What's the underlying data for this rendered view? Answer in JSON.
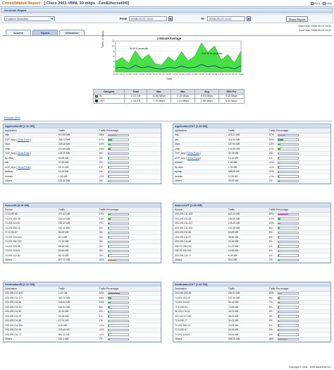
{
  "header": {
    "title_prefix": "Consolidated Report -",
    "title_main": "[ Cisco 2651-VBNL 20 mbps - FastEthernet0/0]",
    "print_label": "Print",
    "help_label": "Help"
  },
  "generate": {
    "section_label": "Generate Report",
    "period_value": "Custom Selection",
    "from_label": "From",
    "from_value": "2008-09-23 13:22",
    "to_label": "To",
    "to_value": "2008-09-23 14:22",
    "show_report_label": "Show Report"
  },
  "times": {
    "start": "Start Time: 2008-09-23 13:22",
    "end": "End Time: 2008-09-23 14:22"
  },
  "tabs": [
    "Volume",
    "Speed",
    "Utilization"
  ],
  "chart_data": {
    "type": "line",
    "title": "1 Minute Average",
    "ylabel": "Traffic (in kbps)",
    "xlabel": "Time",
    "x": [
      "13:25",
      "13:27",
      "13:30",
      "13:33",
      "13:36",
      "13:39",
      "13:42",
      "13:45",
      "13:48",
      "13:51",
      "13:54",
      "13:57",
      "14:00",
      "14:03",
      "14:06",
      "14:09",
      "14:12",
      "14:15",
      "14:18",
      "14:21"
    ],
    "ylim": [
      0,
      12
    ],
    "yticks": [
      0,
      2,
      4,
      6,
      8,
      10,
      12
    ],
    "series": [
      {
        "name": "IN",
        "color": "#33dd33",
        "values": [
          4.1,
          5.6,
          3.4,
          8.3,
          4.8,
          6.9,
          3.2,
          2.7,
          5.9,
          4.0,
          7.9,
          4.4,
          6.1,
          11.2,
          7.6,
          10.1,
          4.6,
          6.8,
          3.5,
          8.1
        ]
      },
      {
        "name": "OUT",
        "color": "#1f2a90",
        "values": [
          1.5,
          1.9,
          1.2,
          2.6,
          1.6,
          2.1,
          1.4,
          1.1,
          1.9,
          1.5,
          2.3,
          1.6,
          1.8,
          2.9,
          2.0,
          2.5,
          1.5,
          1.9,
          1.2,
          2.4
        ]
      }
    ],
    "annotations": [
      "IN 65 % percentile",
      "OUT 65 % percentile"
    ]
  },
  "stats": {
    "headers": [
      "Category",
      "Total",
      "Max",
      "Min",
      "Avg",
      "95th Per"
    ],
    "rows": [
      {
        "name": "IN",
        "color": "#33dd33",
        "total": "2.16 GB",
        "max": "11.66 Mbps",
        "min": "2.12 Mbps",
        "avg": "5.03 Mbps",
        "p95": "9.36 Mbps"
      },
      {
        "name": "OUT",
        "color": "#1f2a90",
        "total": "1.28 GB",
        "max": "7.70 Mbps",
        "min": "1.41 Mbps",
        "avg": "2.98 Mbps",
        "p95": "5.35 Mbps"
      }
    ]
  },
  "resolve_label": "Resolve DNS",
  "show_ports_label": "Show Ports",
  "panels": [
    {
      "title": "ApplicationIN [2.16 GB]",
      "headers": [
        "Application",
        "Traffic",
        "Traffic Percentage"
      ],
      "rows": [
        {
          "name": "http",
          "traffic": "970.59 MB",
          "pct": "45%",
          "val": 45,
          "color": "#f0a050"
        },
        {
          "name": "ESP_App",
          "ports": true,
          "traffic": "358.73 MB",
          "pct": "17%",
          "val": 17,
          "color": "#22cc22"
        },
        {
          "name": "https",
          "traffic": "226.18 MB",
          "pct": "10%",
          "val": 10,
          "color": "#22cc22"
        },
        {
          "name": "smtp",
          "traffic": "214.66 MB",
          "pct": "10%",
          "val": 10,
          "color": "#22cc22"
        },
        {
          "name": "TCP_App",
          "ports": true,
          "traffic": "135.11 MB",
          "pct": "6%",
          "val": 6,
          "color": "#22cc22"
        },
        {
          "name": "ftp-data",
          "traffic": "60.88 MB",
          "pct": "3%",
          "val": 3,
          "color": "#22cc22"
        },
        {
          "name": "ssh",
          "traffic": "37.92 MB",
          "pct": "2%",
          "val": 2,
          "color": "#22cc22"
        },
        {
          "name": "UDP_App",
          "ports": true,
          "traffic": "25.72 MB",
          "pct": "1%",
          "val": 1,
          "color": "#22cc22"
        },
        {
          "name": "Netflow",
          "traffic": "11.23 MB",
          "pct": "1%",
          "val": 1,
          "color": "#22cc22"
        },
        {
          "name": "domain",
          "traffic": "1.43 MB",
          "pct": "<1%",
          "val": 0.5,
          "color": "#22cc22"
        },
        {
          "name": "Others",
          "traffic": "115.34 MB",
          "pct": "5%",
          "val": 5,
          "color": "#22cc22"
        }
      ]
    },
    {
      "title": "ApplicationOUT [1.28 GB]",
      "headers": [
        "Application",
        "Traffic",
        "Traffic Percentage"
      ],
      "rows": [
        {
          "name": "http",
          "traffic": "476.21 MB",
          "pct": "37%",
          "val": 37,
          "color": "#f0a050"
        },
        {
          "name": "ssh",
          "traffic": "314.04 MB",
          "pct": "24%",
          "val": 24,
          "color": "#22cc22"
        },
        {
          "name": "https",
          "traffic": "167.94 MB",
          "pct": "13%",
          "val": 13,
          "color": "#22cc22"
        },
        {
          "name": "smtp",
          "traffic": "141.59 MB",
          "pct": "11%",
          "val": 11,
          "color": "#22cc22"
        },
        {
          "name": "TCP_App",
          "ports": true,
          "traffic": "30.78 MB",
          "pct": "2%",
          "val": 2,
          "color": "#22cc22"
        },
        {
          "name": "UDP_App",
          "ports": true,
          "traffic": "13.16 MB",
          "pct": "1%",
          "val": 1,
          "color": "#22cc22"
        },
        {
          "name": "domain",
          "traffic": "1.45 MB",
          "pct": "<1%",
          "val": 0.5,
          "color": "#22cc22"
        },
        {
          "name": "ftp-data",
          "traffic": "1.09 MB",
          "pct": "<1%",
          "val": 0.5,
          "color": "#22cc22"
        },
        {
          "name": "epmap",
          "traffic": "668.05 KB",
          "pct": "<1%",
          "val": 0.5,
          "color": "#22cc22"
        },
        {
          "name": "domain",
          "traffic": "11.05 KB",
          "pct": "<1%",
          "val": 0.5,
          "color": "#22cc22"
        },
        {
          "name": "Others",
          "traffic": "90.05 MB",
          "pct": "7%",
          "val": 7,
          "color": "#22cc22"
        }
      ]
    },
    {
      "title": "SourceIN [2.16 GB]",
      "headers": [
        "Source",
        "Traffic",
        "Traffic Percentage"
      ],
      "rows": [
        {
          "name": "72.5.230.65",
          "traffic": "272.43 MB",
          "pct": "13%",
          "val": 13,
          "color": "#22cc22"
        },
        {
          "name": "74.201.154.36",
          "traffic": "226.04 MB",
          "pct": "10%",
          "val": 10,
          "color": "#22cc22"
        },
        {
          "name": "74.201.113.10",
          "traffic": "161.22 MB",
          "pct": "7%",
          "val": 7,
          "color": "#22cc22"
        },
        {
          "name": "74.201.150.21",
          "traffic": "110.11 MB",
          "pct": "5%",
          "val": 5,
          "color": "#22cc22"
        },
        {
          "name": "72.5.230.87",
          "traffic": "94.65 MB",
          "pct": "4%",
          "val": 4,
          "color": "#22cc22"
        },
        {
          "name": "74.201.124.218",
          "traffic": "87.0 MB",
          "pct": "4%",
          "val": 4,
          "color": "#22cc22"
        },
        {
          "name": "74.201.150.220",
          "traffic": "71.30 MB",
          "pct": "3%",
          "val": 3,
          "color": "#22cc22"
        },
        {
          "name": "74.201.129.25",
          "traffic": "65.46 MB",
          "pct": "3%",
          "val": 3,
          "color": "#22cc22"
        },
        {
          "name": "74.201.113.61",
          "traffic": "63.66 MB",
          "pct": "3%",
          "val": 3,
          "color": "#22cc22"
        },
        {
          "name": "74.201.113.30",
          "traffic": "60.74 MB",
          "pct": "3%",
          "val": 3,
          "color": "#22cc22"
        },
        {
          "name": "Others",
          "traffic": "877.72 MB",
          "pct": "41%",
          "val": 41,
          "color": "#f0a050"
        }
      ]
    },
    {
      "title": "SourceOUT [1.28 GB]",
      "headers": [
        "Source",
        "Traffic",
        "Traffic Percentage"
      ],
      "rows": [
        {
          "name": "203.199.211.109",
          "traffic": "643.13 MB",
          "pct": "50%",
          "val": 50,
          "color": "#dd33dd"
        },
        {
          "name": "203.199.211.66",
          "traffic": "159.20 MB",
          "pct": "12%",
          "val": 12,
          "color": "#22cc22"
        },
        {
          "name": "203.199.211.117",
          "traffic": "126.29 MB",
          "pct": "10%",
          "val": 10,
          "color": "#22cc22"
        },
        {
          "name": "203.199.211.100",
          "traffic": "101.98 MB",
          "pct": "8%",
          "val": 8,
          "color": "#22cc22"
        },
        {
          "name": "203.199.211.50",
          "traffic": "64.69 MB",
          "pct": "5%",
          "val": 5,
          "color": "#22cc22"
        },
        {
          "name": "203.199.211.97",
          "traffic": "38.95 MB",
          "pct": "3%",
          "val": 3,
          "color": "#22cc22"
        },
        {
          "name": "203.199.211.88",
          "traffic": "24.46 MB",
          "pct": "2%",
          "val": 2,
          "color": "#22cc22"
        },
        {
          "name": "202.97.238.196",
          "traffic": "11.23 MB",
          "pct": "1%",
          "val": 1,
          "color": "#22cc22"
        },
        {
          "name": "202.97.238.204",
          "traffic": "10.95 MB",
          "pct": "1%",
          "val": 1,
          "color": "#22cc22"
        },
        {
          "name": "203.199.211.71",
          "traffic": "9.04 MB",
          "pct": "1%",
          "val": 1,
          "color": "#22cc22"
        },
        {
          "name": "Others",
          "traffic": "90.6 MB",
          "pct": "7%",
          "val": 7,
          "color": "#22cc22"
        }
      ]
    },
    {
      "title": "DestinationIN [2.16 GB]",
      "headers": [
        "Destination",
        "Traffic",
        "Traffic Percentage"
      ],
      "rows": [
        {
          "name": "203.199.211.109",
          "traffic": "1.22 GB",
          "pct": "57%",
          "val": 57,
          "color": "#dd33dd"
        },
        {
          "name": "203.199.211.117",
          "traffic": "340.74 MB",
          "pct": "16%",
          "val": 16,
          "color": "#22cc22"
        },
        {
          "name": "203.199.211.66",
          "traffic": "208.54 MB",
          "pct": "10%",
          "val": 10,
          "color": "#22cc22"
        },
        {
          "name": "203.199.211.107",
          "traffic": "164.51 MB",
          "pct": "8%",
          "val": 8,
          "color": "#22cc22"
        },
        {
          "name": "203.199.211.50",
          "traffic": "51.20 MB",
          "pct": "2%",
          "val": 2,
          "color": "#22cc22"
        },
        {
          "name": "203.199.211.97",
          "traffic": "29.26 MB",
          "pct": "1%",
          "val": 1,
          "color": "#22cc22"
        },
        {
          "name": "203.199.211.88",
          "traffic": "17.91 MB",
          "pct": "1%",
          "val": 1,
          "color": "#22cc22"
        },
        {
          "name": "203.199.211.100",
          "traffic": "6.00 MB",
          "pct": "<1%",
          "val": 0.5,
          "color": "#22cc22"
        },
        {
          "name": "203.199.211.90",
          "traffic": "929.49 KB",
          "pct": "<1%",
          "val": 0.5,
          "color": "#22cc22"
        },
        {
          "name": "203.199.211.71",
          "traffic": "861.11 KB",
          "pct": "<1%",
          "val": 0.5,
          "color": "#22cc22"
        },
        {
          "name": "Others",
          "traffic": "161.1 MB",
          "pct": "7%",
          "val": 7,
          "color": "#22cc22"
        }
      ]
    },
    {
      "title": "DestinationOUT [1.28 GB]",
      "headers": [
        "Destination",
        "Traffic",
        "Traffic Percentage"
      ],
      "rows": [
        {
          "name": "218.249.253.51",
          "traffic": "254.61 MB",
          "pct": "20%",
          "val": 20,
          "color": "#f0a050"
        },
        {
          "name": "74.201.154.29",
          "traffic": "107.20 MB",
          "pct": "8%",
          "val": 8,
          "color": "#22cc22"
        },
        {
          "name": "74.201.113.10",
          "traffic": "94.14 MB",
          "pct": "7%",
          "val": 7,
          "color": "#22cc22"
        },
        {
          "name": "72.5.230.51",
          "traffic": "73.55 MB",
          "pct": "6%",
          "val": 6,
          "color": "#22cc22"
        },
        {
          "name": "66.211.176.23",
          "traffic": "43.31 MB",
          "pct": "3%",
          "val": 3,
          "color": "#22cc22"
        },
        {
          "name": "112.144.27.230",
          "traffic": "38.31 MB",
          "pct": "3%",
          "val": 3,
          "color": "#22cc22"
        },
        {
          "name": "72.5.230.77",
          "traffic": "31.03 MB",
          "pct": "2%",
          "val": 2,
          "color": "#22cc22"
        },
        {
          "name": "74.201.150.24",
          "traffic": "29.05 MB",
          "pct": "2%",
          "val": 2,
          "color": "#22cc22"
        },
        {
          "name": "72.5.230.87",
          "traffic": "26.33 MB",
          "pct": "2%",
          "val": 2,
          "color": "#22cc22"
        },
        {
          "name": "74.201.113.61",
          "traffic": "25.54 MB",
          "pct": "2%",
          "val": 2,
          "color": "#22cc22"
        },
        {
          "name": "Others",
          "traffic": "595.25 MB",
          "pct": "46%",
          "val": 46,
          "color": "#f0a050"
        }
      ]
    }
  ],
  "footer": "Copyright © 2004 - 2008 AdventNet Inc."
}
